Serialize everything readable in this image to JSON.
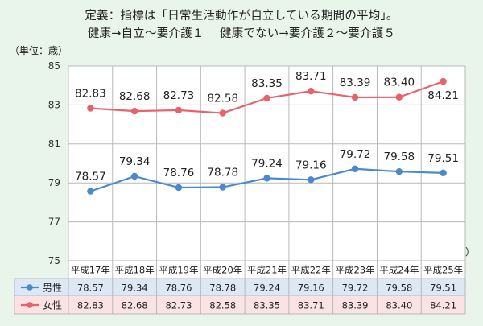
{
  "title": {
    "line1": "定義：指標は「日常生活動作が自立している期間の平均」。",
    "line2": "健康→自立〜要介護１　 健康でない→要介護２〜要介護５"
  },
  "unit_top": "（単位：歳）",
  "unit_inner": "（単位：歳）",
  "colors": {
    "male": "#4a89cc",
    "female": "#e8616b",
    "male_row_bg": "#dce8f6",
    "female_row_bg": "#fbe3e4",
    "grid": "#b8b8b8"
  },
  "chart_data": {
    "type": "line",
    "categories": [
      "平成17年",
      "平成18年",
      "平成19年",
      "平成20年",
      "平成21年",
      "平成22年",
      "平成23年",
      "平成24年",
      "平成25年"
    ],
    "series": [
      {
        "name": "男性",
        "values": [
          78.57,
          79.34,
          78.76,
          78.78,
          79.24,
          79.16,
          79.72,
          79.58,
          79.51
        ],
        "labels": [
          "78.57",
          "79.34",
          "78.76",
          "78.78",
          "79.24",
          "79.16",
          "79.72",
          "79.58",
          "79.51"
        ]
      },
      {
        "name": "女性",
        "values": [
          82.83,
          82.68,
          82.73,
          82.58,
          83.35,
          83.71,
          83.39,
          83.4,
          84.21
        ],
        "labels": [
          "82.83",
          "82.68",
          "82.73",
          "82.58",
          "83.35",
          "83.71",
          "83.39",
          "83.40",
          "84.21"
        ]
      }
    ],
    "ylim": [
      75,
      85
    ],
    "yticks": [
      "75",
      "77",
      "79",
      "81",
      "83",
      "85"
    ],
    "grid": true,
    "legend": "data-table-left"
  }
}
